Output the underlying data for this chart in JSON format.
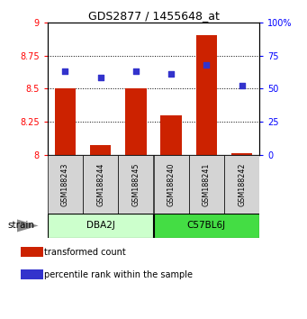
{
  "title": "GDS2877 / 1455648_at",
  "samples": [
    "GSM188243",
    "GSM188244",
    "GSM188245",
    "GSM188240",
    "GSM188241",
    "GSM188242"
  ],
  "red_values": [
    8.5,
    8.07,
    8.5,
    8.3,
    8.9,
    8.01
  ],
  "blue_values": [
    63,
    58,
    63,
    61,
    68,
    52
  ],
  "groups": [
    {
      "label": "DBA2J",
      "indices": [
        0,
        1,
        2
      ],
      "color": "#ccffcc"
    },
    {
      "label": "C57BL6J",
      "indices": [
        3,
        4,
        5
      ],
      "color": "#44dd44"
    }
  ],
  "ylim_left": [
    8.0,
    9.0
  ],
  "ylim_right": [
    0,
    100
  ],
  "yticks_left": [
    8.0,
    8.25,
    8.5,
    8.75,
    9.0
  ],
  "yticks_right": [
    0,
    25,
    50,
    75,
    100
  ],
  "ytick_labels_left": [
    "8",
    "8.25",
    "8.5",
    "8.75",
    "9"
  ],
  "ytick_labels_right": [
    "0",
    "25",
    "50",
    "75",
    "100%"
  ],
  "hlines": [
    8.25,
    8.5,
    8.75
  ],
  "bar_color": "#cc2200",
  "scatter_color": "#3333cc",
  "bar_width": 0.6,
  "legend_red_label": "transformed count",
  "legend_blue_label": "percentile rank within the sample",
  "strain_label": "strain"
}
